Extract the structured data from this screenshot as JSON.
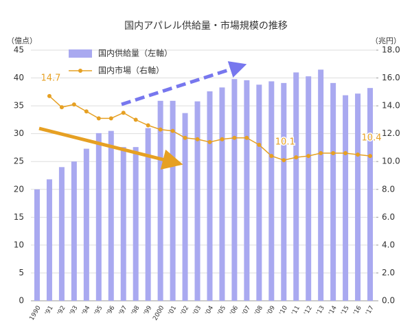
{
  "chart_data": {
    "type": "bar-line",
    "title": "国内アパレル供給量・市場規模の推移",
    "y_label": "（億点）",
    "y2_label": "（兆円）",
    "categories": [
      "1990",
      "'91",
      "'92",
      "'93",
      "'94",
      "'95",
      "'96",
      "'97",
      "'98",
      "'99",
      "2000",
      "'01",
      "'02",
      "'03",
      "'04",
      "'05",
      "'06",
      "'07",
      "'08",
      "'09",
      "'10",
      "'11",
      "'12",
      "'13",
      "'14",
      "'15",
      "'16",
      "'17"
    ],
    "ylim": [
      0,
      45
    ],
    "yticks": [
      0,
      5,
      10,
      15,
      20,
      25,
      30,
      35,
      40,
      45
    ],
    "y2lim": [
      0,
      18
    ],
    "y2ticks": [
      {
        "value": 0,
        "label": "0.0"
      },
      {
        "value": 2,
        "label": "2.0"
      },
      {
        "value": 4,
        "label": "4.0"
      },
      {
        "value": 6,
        "label": "6.0"
      },
      {
        "value": 8,
        "label": "8.0"
      },
      {
        "value": 10,
        "label": "10.0"
      },
      {
        "value": 12,
        "label": "12.0"
      },
      {
        "value": 14,
        "label": "14.0"
      },
      {
        "value": 16,
        "label": "16.0"
      },
      {
        "value": 18,
        "label": "18.0"
      }
    ],
    "grid": true,
    "series": [
      {
        "name": "国内供給量（左軸）",
        "type": "bar",
        "color": "#a9a9f0",
        "values": [
          20.0,
          21.8,
          24.0,
          25.0,
          27.3,
          30.1,
          30.5,
          27.6,
          27.6,
          31.0,
          35.9,
          35.9,
          33.7,
          35.8,
          37.6,
          38.3,
          39.8,
          39.6,
          38.8,
          39.4,
          39.1,
          41.0,
          40.3,
          41.5,
          39.1,
          36.9,
          37.2,
          38.2
        ]
      },
      {
        "name": "国内市場（右軸）",
        "type": "line",
        "axis": "y2",
        "color": "#e6a023",
        "values": [
          null,
          14.7,
          13.9,
          14.1,
          13.6,
          13.1,
          13.1,
          13.5,
          13.0,
          12.6,
          12.3,
          12.2,
          11.7,
          11.6,
          11.4,
          11.6,
          11.7,
          11.7,
          11.2,
          10.4,
          10.1,
          10.3,
          10.4,
          10.6,
          10.6,
          10.6,
          10.5,
          10.4
        ],
        "value_labels": [
          null,
          "14.7",
          null,
          null,
          null,
          null,
          null,
          null,
          null,
          null,
          null,
          null,
          null,
          null,
          null,
          null,
          null,
          null,
          null,
          null,
          "10.1",
          null,
          null,
          null,
          null,
          null,
          null,
          "10.4"
        ]
      }
    ]
  }
}
